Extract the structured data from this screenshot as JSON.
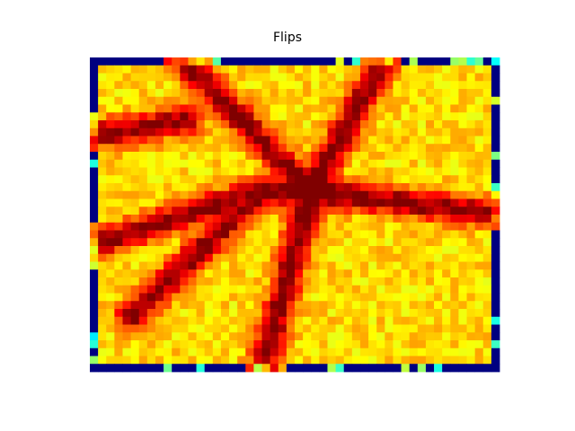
{
  "chart_data": {
    "type": "heatmap",
    "title": "Flips",
    "xlabel": "",
    "ylabel": "",
    "colormap": "jet",
    "axes_visible": false,
    "grid": false,
    "legend": "none",
    "grid_size": {
      "cols": 50,
      "rows": 40
    },
    "value_range": [
      0,
      1
    ],
    "structure": {
      "border_low_value": 0.0,
      "interior_base_value": 0.66,
      "ridge_peak_value": 1.0,
      "hub": {
        "col": 27,
        "row": 17
      },
      "ridges": [
        {
          "from": {
            "col": 27,
            "row": 17
          },
          "to": {
            "col": 11,
            "row": 0
          }
        },
        {
          "from": {
            "col": 27,
            "row": 17
          },
          "to": {
            "col": 36,
            "row": 0
          }
        },
        {
          "from": {
            "col": 27,
            "row": 17
          },
          "to": {
            "col": 50,
            "row": 20
          }
        },
        {
          "from": {
            "col": 27,
            "row": 17
          },
          "to": {
            "col": 21,
            "row": 40
          }
        },
        {
          "from": {
            "col": 21,
            "row": 17
          },
          "to": {
            "col": 0,
            "row": 24
          }
        },
        {
          "from": {
            "col": 21,
            "row": 17
          },
          "to": {
            "col": 5,
            "row": 33
          }
        },
        {
          "from": {
            "col": 21,
            "row": 17
          },
          "to": {
            "col": 27,
            "row": 17
          }
        },
        {
          "from": {
            "col": 12,
            "row": 8
          },
          "to": {
            "col": 0,
            "row": 10
          }
        }
      ]
    }
  }
}
